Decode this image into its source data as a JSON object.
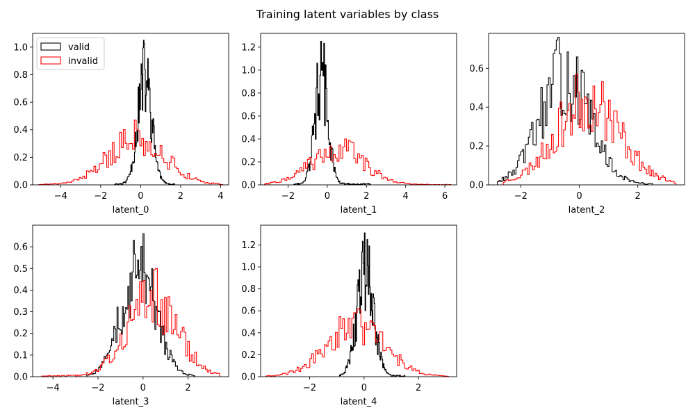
{
  "figure": {
    "title": "Training latent variables by class"
  },
  "colors": {
    "valid": "#000000",
    "invalid": "#ff0000"
  },
  "legend": {
    "placement": "top-left",
    "entries": [
      {
        "label": "valid",
        "color": "#000000"
      },
      {
        "label": "invalid",
        "color": "#ff0000"
      }
    ]
  },
  "chart_data": [
    {
      "type": "histogram",
      "xlabel": "latent_0",
      "xlim": [
        -5.4,
        4.4
      ],
      "ylim": [
        0,
        1.1
      ],
      "xticks": [
        -4,
        -2,
        0,
        2,
        4
      ],
      "yticks": [
        0.0,
        0.2,
        0.4,
        0.6,
        0.8,
        1.0
      ],
      "tick_decimals": 1,
      "has_legend": true,
      "series": [
        {
          "name": "valid",
          "color": "#000000",
          "mean": 0.2,
          "std": 0.35,
          "range": [
            -1.3,
            1.7
          ],
          "peak": 1.05,
          "seed": 11
        },
        {
          "name": "invalid",
          "color": "#ff0000",
          "mean": -0.2,
          "std": 1.4,
          "range": [
            -5.1,
            4.1
          ],
          "peak": 0.47,
          "seed": 21
        }
      ]
    },
    {
      "type": "histogram",
      "xlabel": "latent_1",
      "xlim": [
        -3.4,
        6.6
      ],
      "ylim": [
        0,
        1.32
      ],
      "xticks": [
        -2,
        0,
        2,
        4,
        6
      ],
      "yticks": [
        0.0,
        0.2,
        0.4,
        0.6,
        0.8,
        1.0,
        1.2
      ],
      "tick_decimals": 1,
      "has_legend": false,
      "series": [
        {
          "name": "valid",
          "color": "#000000",
          "mean": -0.3,
          "std": 0.33,
          "range": [
            -1.7,
            2.2
          ],
          "peak": 1.25,
          "seed": 12
        },
        {
          "name": "invalid",
          "color": "#ff0000",
          "mean": 0.5,
          "std": 1.35,
          "range": [
            -3.2,
            6.3
          ],
          "peak": 0.4,
          "seed": 22
        }
      ]
    },
    {
      "type": "histogram",
      "xlabel": "latent_2",
      "xlim": [
        -3.1,
        3.6
      ],
      "ylim": [
        0,
        0.78
      ],
      "xticks": [
        -2,
        0,
        2
      ],
      "yticks": [
        0.0,
        0.2,
        0.4,
        0.6
      ],
      "tick_decimals": 1,
      "has_legend": false,
      "series": [
        {
          "name": "valid",
          "color": "#000000",
          "mean": -0.5,
          "std": 0.85,
          "range": [
            -2.8,
            2.5
          ],
          "peak": 0.76,
          "seed": 13
        },
        {
          "name": "invalid",
          "color": "#ff0000",
          "mean": 0.3,
          "std": 1.1,
          "range": [
            -2.6,
            3.3
          ],
          "peak": 0.57,
          "seed": 23
        }
      ]
    },
    {
      "type": "histogram",
      "xlabel": "latent_3",
      "xlim": [
        -4.9,
        3.8
      ],
      "ylim": [
        0,
        0.7
      ],
      "xticks": [
        -4,
        -2,
        0,
        2
      ],
      "yticks": [
        0.0,
        0.1,
        0.2,
        0.3,
        0.4,
        0.5,
        0.6
      ],
      "tick_decimals": 1,
      "has_legend": false,
      "series": [
        {
          "name": "valid",
          "color": "#000000",
          "mean": -0.2,
          "std": 0.75,
          "range": [
            -2.5,
            2.3
          ],
          "peak": 0.66,
          "seed": 14
        },
        {
          "name": "invalid",
          "color": "#ff0000",
          "mean": 0.4,
          "std": 1.1,
          "range": [
            -4.5,
            3.4
          ],
          "peak": 0.5,
          "seed": 24
        }
      ]
    },
    {
      "type": "histogram",
      "xlabel": "latent_4",
      "xlim": [
        -3.8,
        3.4
      ],
      "ylim": [
        0,
        1.38
      ],
      "xticks": [
        -2,
        0,
        2
      ],
      "yticks": [
        0.0,
        0.2,
        0.4,
        0.6,
        0.8,
        1.0,
        1.2
      ],
      "tick_decimals": 1,
      "has_legend": false,
      "series": [
        {
          "name": "valid",
          "color": "#000000",
          "mean": 0.05,
          "std": 0.3,
          "range": [
            -0.9,
            1.5
          ],
          "peak": 1.31,
          "seed": 15
        },
        {
          "name": "invalid",
          "color": "#ff0000",
          "mean": -0.3,
          "std": 1.05,
          "range": [
            -3.6,
            3.1
          ],
          "peak": 0.62,
          "seed": 25
        }
      ]
    }
  ]
}
